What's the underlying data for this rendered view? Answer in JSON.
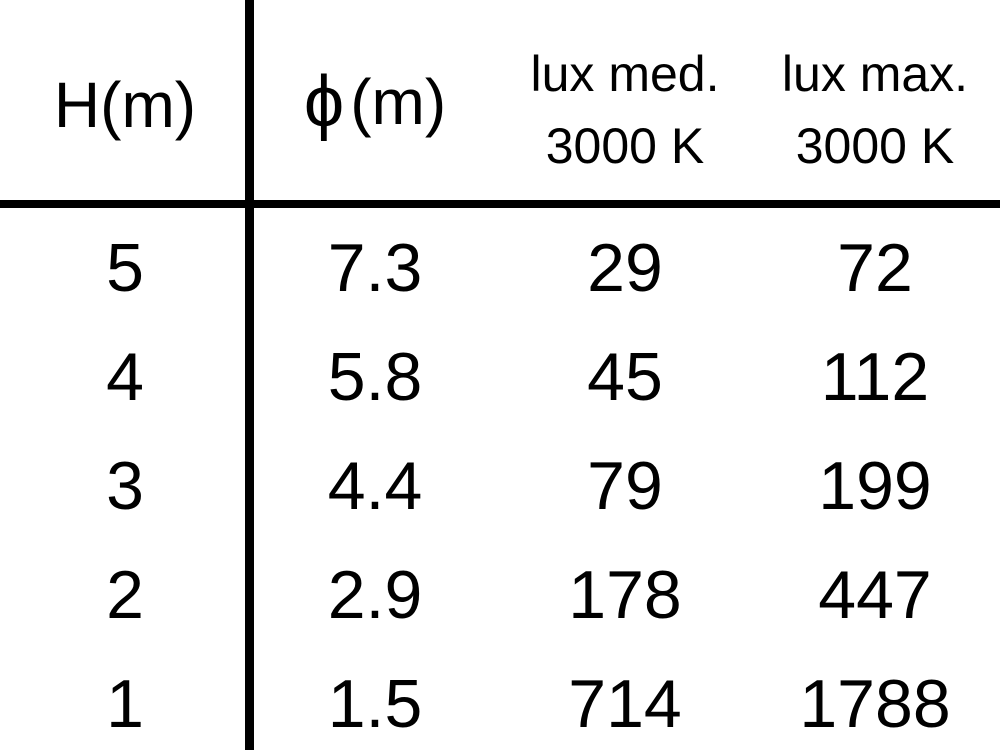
{
  "colors": {
    "background": "#ffffff",
    "text": "#000000",
    "divider": "#000000"
  },
  "table": {
    "columns": [
      {
        "label": "H(m)",
        "sublabel": ""
      },
      {
        "label_symbol": "ϕ",
        "label_rest": "(m)",
        "sublabel": ""
      },
      {
        "label": "lux med.",
        "sublabel": "3000 K"
      },
      {
        "label": "lux max.",
        "sublabel": "3000 K"
      }
    ],
    "rows": [
      [
        "5",
        "7.3",
        "29",
        "72"
      ],
      [
        "4",
        "5.8",
        "45",
        "112"
      ],
      [
        "3",
        "4.4",
        "79",
        "199"
      ],
      [
        "2",
        "2.9",
        "178",
        "447"
      ],
      [
        "1",
        "1.5",
        "714",
        "1788"
      ]
    ]
  },
  "chart_data": {
    "type": "table",
    "columns": [
      "H(m)",
      "ϕ(m)",
      "lux med. 3000 K",
      "lux max. 3000 K"
    ],
    "rows": [
      [
        5,
        7.3,
        29,
        72
      ],
      [
        4,
        5.8,
        45,
        112
      ],
      [
        3,
        4.4,
        79,
        199
      ],
      [
        2,
        2.9,
        178,
        447
      ],
      [
        1,
        1.5,
        714,
        1788
      ]
    ],
    "description_from_pixels_only": "Table relating mounting height H in meters to beam diameter ϕ in meters and average/maximum illuminance in lux at 3000 K"
  }
}
